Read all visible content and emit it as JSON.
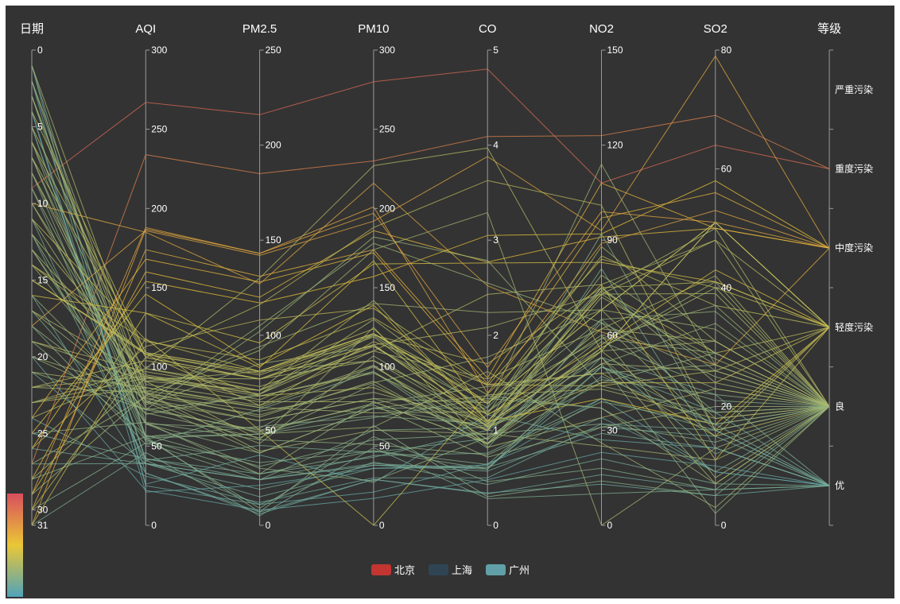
{
  "chart_data": {
    "type": "parallel",
    "axes": [
      {
        "name": "日期",
        "kind": "value",
        "min": 0,
        "max": 31,
        "inverse": true,
        "ticks": [
          0,
          5,
          10,
          15,
          20,
          25,
          30,
          31
        ]
      },
      {
        "name": "AQI",
        "kind": "value",
        "min": 0,
        "max": 300,
        "ticks": [
          0,
          50,
          100,
          150,
          200,
          250,
          300
        ]
      },
      {
        "name": "PM2.5",
        "kind": "value",
        "min": 0,
        "max": 250,
        "ticks": [
          0,
          50,
          100,
          150,
          200,
          250
        ]
      },
      {
        "name": "PM10",
        "kind": "value",
        "min": 0,
        "max": 300,
        "ticks": [
          0,
          50,
          100,
          150,
          200,
          250,
          300
        ]
      },
      {
        "name": "CO",
        "kind": "value",
        "min": 0,
        "max": 5,
        "ticks": [
          0,
          1,
          2,
          3,
          4,
          5
        ]
      },
      {
        "name": "NO2",
        "kind": "value",
        "min": 0,
        "max": 150,
        "ticks": [
          0,
          30,
          60,
          90,
          120,
          150
        ]
      },
      {
        "name": "SO2",
        "kind": "value",
        "min": 0,
        "max": 80,
        "ticks": [
          0,
          20,
          40,
          60,
          80
        ]
      },
      {
        "name": "等级",
        "kind": "category",
        "categories": [
          "优",
          "良",
          "轻度污染",
          "中度污染",
          "重度污染",
          "严重污染"
        ]
      }
    ],
    "legend": [
      {
        "name": "北京",
        "color": "#c23531"
      },
      {
        "name": "上海",
        "color": "#2f4554"
      },
      {
        "name": "广州",
        "color": "#61a0a8"
      }
    ],
    "visual_map": {
      "dimension": "AQI",
      "min": 0,
      "max": 300,
      "colors": [
        "#50a3ba",
        "#eac736",
        "#d94e5d"
      ]
    },
    "series": [
      {
        "name": "北京",
        "data": [
          [
            1,
            55,
            9,
            56,
            0.46,
            18,
            6,
            "良"
          ],
          [
            2,
            25,
            11,
            21,
            0.65,
            34,
            9,
            "优"
          ],
          [
            3,
            56,
            7,
            63,
            0.3,
            14,
            5,
            "良"
          ],
          [
            4,
            33,
            7,
            29,
            0.33,
            16,
            6,
            "优"
          ],
          [
            5,
            42,
            24,
            44,
            0.76,
            40,
            16,
            "优"
          ],
          [
            6,
            82,
            58,
            90,
            1.77,
            68,
            33,
            "良"
          ],
          [
            7,
            74,
            49,
            77,
            1.46,
            48,
            27,
            "良"
          ],
          [
            8,
            78,
            55,
            80,
            1.29,
            59,
            29,
            "良"
          ],
          [
            9,
            267,
            216,
            280,
            4.8,
            108,
            64,
            "重度污染"
          ],
          [
            10,
            185,
            127,
            216,
            2.52,
            61,
            27,
            "中度污染"
          ],
          [
            11,
            39,
            19,
            38,
            0.57,
            31,
            15,
            "优"
          ],
          [
            12,
            41,
            11,
            40,
            0.43,
            21,
            7,
            "优"
          ],
          [
            13,
            64,
            38,
            74,
            1.04,
            46,
            22,
            "良"
          ],
          [
            14,
            108,
            79,
            120,
            1.7,
            75,
            41,
            "轻度污染"
          ],
          [
            15,
            108,
            63,
            116,
            1.48,
            44,
            26,
            "轻度污染"
          ],
          [
            16,
            33,
            6,
            29,
            0.34,
            13,
            5,
            "优"
          ],
          [
            17,
            94,
            66,
            110,
            1.54,
            62,
            31,
            "良"
          ],
          [
            18,
            186,
            142,
            192,
            3.88,
            93,
            79,
            "中度污染"
          ],
          [
            19,
            57,
            31,
            54,
            0.96,
            32,
            14,
            "良"
          ],
          [
            20,
            22,
            8,
            17,
            0.48,
            23,
            10,
            "优"
          ],
          [
            21,
            39,
            15,
            36,
            0.61,
            29,
            13,
            "优"
          ],
          [
            22,
            94,
            69,
            114,
            2.08,
            73,
            39,
            "良"
          ],
          [
            23,
            99,
            73,
            110,
            2.43,
            76,
            48,
            "良"
          ],
          [
            24,
            31,
            12,
            30,
            0.5,
            32,
            16,
            "优"
          ],
          [
            25,
            42,
            27,
            43,
            1,
            53,
            22,
            "优"
          ],
          [
            26,
            154,
            117,
            157,
            3.05,
            92,
            58,
            "中度污染"
          ],
          [
            27,
            234,
            185,
            230,
            4.09,
            123,
            69,
            "重度污染"
          ],
          [
            28,
            160,
            120,
            186,
            2.77,
            91,
            50,
            "中度污染"
          ],
          [
            29,
            134,
            96,
            165,
            2.76,
            83,
            41,
            "轻度污染"
          ],
          [
            30,
            52,
            24,
            60,
            1.03,
            50,
            21,
            "良"
          ],
          [
            31,
            46,
            5,
            49,
            0.28,
            10,
            6,
            "优"
          ]
        ]
      },
      {
        "name": "上海",
        "data": [
          [
            1,
            26,
            37,
            27,
            1.163,
            27,
            13,
            "优"
          ],
          [
            2,
            85,
            62,
            71,
            1.195,
            60,
            8,
            "良"
          ],
          [
            3,
            78,
            38,
            74,
            1.363,
            37,
            7,
            "良"
          ],
          [
            4,
            21,
            21,
            36,
            0.634,
            40,
            9,
            "优"
          ],
          [
            5,
            41,
            42,
            46,
            0.915,
            81,
            13,
            "优"
          ],
          [
            6,
            56,
            52,
            69,
            1.067,
            92,
            16,
            "良"
          ],
          [
            7,
            64,
            30,
            28,
            0.924,
            51,
            2,
            "良"
          ],
          [
            8,
            55,
            48,
            74,
            1.236,
            75,
            26,
            "良"
          ],
          [
            9,
            76,
            85,
            113,
            1.237,
            114,
            27,
            "良"
          ],
          [
            10,
            91,
            81,
            104,
            1.041,
            56,
            40,
            "良"
          ],
          [
            11,
            84,
            39,
            60,
            0.964,
            25,
            11,
            "良"
          ],
          [
            12,
            64,
            51,
            101,
            0.862,
            58,
            23,
            "良"
          ],
          [
            13,
            70,
            69,
            120,
            1.198,
            65,
            36,
            "良"
          ],
          [
            14,
            77,
            105,
            178,
            2.549,
            64,
            16,
            "良"
          ],
          [
            15,
            109,
            68,
            87,
            0.996,
            74,
            29,
            "轻度污染"
          ],
          [
            16,
            73,
            68,
            97,
            0.905,
            51,
            34,
            "良"
          ],
          [
            17,
            54,
            27,
            47,
            0.592,
            53,
            12,
            "良"
          ],
          [
            18,
            51,
            61,
            97,
            0.811,
            65,
            19,
            "良"
          ],
          [
            19,
            91,
            71,
            121,
            1.374,
            43,
            18,
            "良"
          ],
          [
            20,
            73,
            102,
            182,
            2.787,
            44,
            19,
            "良"
          ],
          [
            21,
            73,
            50,
            76,
            0.717,
            31,
            20,
            "良"
          ],
          [
            22,
            84,
            94,
            140,
            2.238,
            68,
            18,
            "良"
          ],
          [
            23,
            93,
            77,
            104,
            1.165,
            53,
            7,
            "良"
          ],
          [
            24,
            99,
            130,
            227,
            3.97,
            55,
            15,
            "良"
          ],
          [
            25,
            146,
            84,
            139,
            1.094,
            40,
            17,
            "轻度污染"
          ],
          [
            26,
            113,
            108,
            137,
            1.481,
            48,
            15,
            "轻度污染"
          ],
          [
            27,
            81,
            48,
            62,
            1.619,
            26,
            3,
            "良"
          ],
          [
            28,
            56,
            48,
            68,
            1.336,
            37,
            9,
            "良"
          ],
          [
            29,
            82,
            92,
            174,
            3.29,
            0,
            13,
            "良"
          ],
          [
            30,
            106,
            116,
            188,
            3.628,
            101,
            16,
            "轻度污染"
          ],
          [
            31,
            118,
            50,
            0,
            1.383,
            76,
            11,
            "轻度污染"
          ]
        ]
      },
      {
        "name": "广州",
        "data": [
          [
            1,
            91,
            45,
            125,
            0.82,
            34,
            23,
            "良"
          ],
          [
            2,
            65,
            27,
            78,
            0.86,
            45,
            29,
            "良"
          ],
          [
            3,
            83,
            60,
            84,
            1.09,
            73,
            27,
            "良"
          ],
          [
            4,
            109,
            81,
            121,
            1.28,
            68,
            51,
            "轻度污染"
          ],
          [
            5,
            106,
            77,
            114,
            1.07,
            55,
            51,
            "轻度污染"
          ],
          [
            6,
            109,
            81,
            121,
            1.28,
            68,
            51,
            "轻度污染"
          ],
          [
            7,
            106,
            77,
            114,
            1.07,
            55,
            51,
            "轻度污染"
          ],
          [
            8,
            89,
            65,
            78,
            0.86,
            51,
            26,
            "良"
          ],
          [
            9,
            53,
            33,
            47,
            0.64,
            50,
            17,
            "良"
          ],
          [
            10,
            80,
            55,
            80,
            1.01,
            75,
            24,
            "良"
          ],
          [
            11,
            117,
            81,
            124,
            1.03,
            45,
            24,
            "轻度污染"
          ],
          [
            12,
            99,
            71,
            142,
            1.1,
            62,
            42,
            "良"
          ],
          [
            13,
            95,
            69,
            130,
            1.28,
            74,
            50,
            "良"
          ],
          [
            14,
            116,
            87,
            131,
            1.47,
            84,
            40,
            "轻度污染"
          ],
          [
            15,
            108,
            80,
            121,
            1.3,
            85,
            37,
            "轻度污染"
          ],
          [
            16,
            134,
            83,
            167,
            1.16,
            57,
            43,
            "轻度污染"
          ],
          [
            17,
            79,
            43,
            107,
            1.05,
            59,
            37,
            "良"
          ],
          [
            18,
            71,
            46,
            89,
            0.86,
            64,
            25,
            "良"
          ],
          [
            19,
            97,
            71,
            113,
            1.17,
            88,
            31,
            "良"
          ],
          [
            20,
            84,
            57,
            91,
            0.85,
            55,
            31,
            "良"
          ],
          [
            21,
            87,
            63,
            101,
            0.9,
            56,
            41,
            "良"
          ],
          [
            22,
            104,
            77,
            119,
            1.09,
            73,
            48,
            "轻度污染"
          ],
          [
            23,
            87,
            62,
            100,
            1,
            72,
            28,
            "良"
          ],
          [
            24,
            168,
            128,
            172,
            1.49,
            97,
            56,
            "中度污染"
          ],
          [
            25,
            65,
            45,
            51,
            0.74,
            39,
            17,
            "良"
          ],
          [
            26,
            39,
            24,
            38,
            0.61,
            47,
            17,
            "优"
          ],
          [
            27,
            39,
            24,
            39,
            0.59,
            50,
            19,
            "优"
          ],
          [
            28,
            93,
            68,
            96,
            1.05,
            79,
            29,
            "良"
          ],
          [
            29,
            188,
            143,
            197,
            1.66,
            99,
            51,
            "中度污染"
          ],
          [
            30,
            174,
            131,
            174,
            1.55,
            108,
            50,
            "中度污染"
          ],
          [
            31,
            187,
            143,
            201,
            1.39,
            89,
            53,
            "中度污染"
          ]
        ]
      }
    ]
  }
}
